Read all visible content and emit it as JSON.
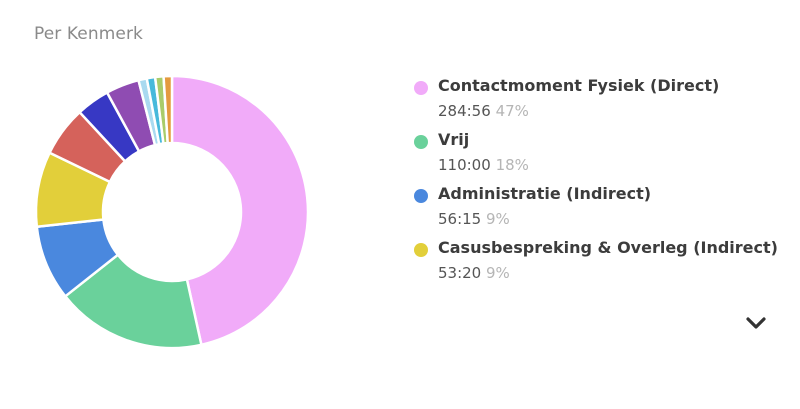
{
  "title": "Per Kenmerk",
  "chart_data": {
    "type": "pie",
    "title": "Per Kenmerk",
    "donut": true,
    "slices": [
      {
        "label": "Contactmoment Fysiek (Direct)",
        "value": 47,
        "color": "#F1ABF9"
      },
      {
        "label": "Vrij",
        "value": 18,
        "color": "#6AD19B"
      },
      {
        "label": "Administratie (Indirect)",
        "value": 9,
        "color": "#4A88DE"
      },
      {
        "label": "Casusbespreking & Overleg (Indirect)",
        "value": 9,
        "color": "#E2CF3A"
      },
      {
        "label": "",
        "value": 6,
        "color": "#D5625B"
      },
      {
        "label": "",
        "value": 4,
        "color": "#3738C4"
      },
      {
        "label": "",
        "value": 4,
        "color": "#8F4CB2"
      },
      {
        "label": "",
        "value": 1,
        "color": "#A9DAF0"
      },
      {
        "label": "",
        "value": 1,
        "color": "#47B9DB"
      },
      {
        "label": "",
        "value": 1,
        "color": "#A9CC6A"
      },
      {
        "label": "",
        "value": 1,
        "color": "#E49A3E"
      }
    ]
  },
  "legend": [
    {
      "label": "Contactmoment Fysiek (Direct)",
      "time": "284:56",
      "percent": "47%",
      "color": "#F1ABF9"
    },
    {
      "label": "Vrij",
      "time": "110:00",
      "percent": "18%",
      "color": "#6AD19B"
    },
    {
      "label": "Administratie (Indirect)",
      "time": "56:15",
      "percent": "9%",
      "color": "#4A88DE"
    },
    {
      "label": "Casusbespreking & Overleg (Indirect)",
      "time": "53:20",
      "percent": "9%",
      "color": "#E2CF3A"
    }
  ],
  "expand_icon": "chevron-down-icon"
}
